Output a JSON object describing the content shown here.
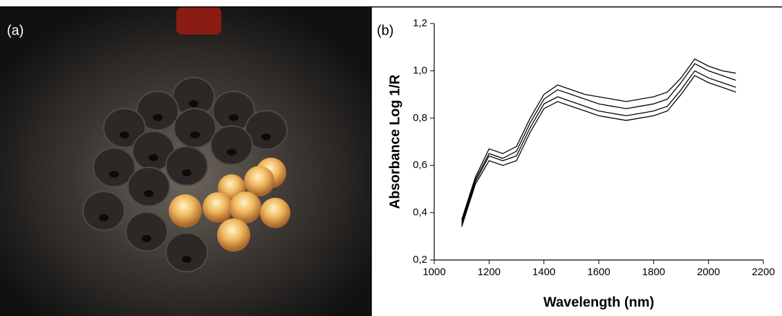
{
  "panel_a": {
    "label": "(a)"
  },
  "chart_data": {
    "type": "line",
    "panel_label": "(b)",
    "x_label": "Wavelength (nm)",
    "y_label": "Absorbance Log 1/R",
    "x": [
      1100,
      1150,
      1200,
      1250,
      1300,
      1350,
      1400,
      1450,
      1500,
      1550,
      1600,
      1650,
      1700,
      1750,
      1800,
      1850,
      1900,
      1950,
      2000,
      2050,
      2100
    ],
    "series": [
      {
        "color": "#000000",
        "values": [
          0.37,
          0.55,
          0.67,
          0.65,
          0.68,
          0.8,
          0.9,
          0.94,
          0.92,
          0.9,
          0.89,
          0.88,
          0.87,
          0.88,
          0.89,
          0.91,
          0.97,
          1.05,
          1.02,
          1.0,
          0.99
        ]
      },
      {
        "color": "#000000",
        "values": [
          0.36,
          0.54,
          0.65,
          0.63,
          0.66,
          0.78,
          0.88,
          0.92,
          0.9,
          0.88,
          0.86,
          0.85,
          0.84,
          0.85,
          0.86,
          0.88,
          0.95,
          1.03,
          1.0,
          0.98,
          0.96
        ]
      },
      {
        "color": "#000000",
        "values": [
          0.35,
          0.53,
          0.64,
          0.62,
          0.64,
          0.76,
          0.86,
          0.89,
          0.87,
          0.85,
          0.83,
          0.82,
          0.81,
          0.82,
          0.83,
          0.85,
          0.92,
          1.0,
          0.97,
          0.95,
          0.93
        ]
      },
      {
        "color": "#000000",
        "values": [
          0.34,
          0.52,
          0.62,
          0.6,
          0.62,
          0.74,
          0.84,
          0.87,
          0.85,
          0.83,
          0.81,
          0.8,
          0.79,
          0.8,
          0.81,
          0.83,
          0.9,
          0.98,
          0.95,
          0.93,
          0.91
        ]
      }
    ],
    "xlim": [
      1000,
      2200
    ],
    "xticks": [
      1000,
      1200,
      1400,
      1600,
      1800,
      2000,
      2200
    ],
    "ylim": [
      0.2,
      1.2
    ],
    "yticks": [
      {
        "value": 0.2,
        "label": "0,2"
      },
      {
        "value": 0.4,
        "label": "0,4"
      },
      {
        "value": 0.6,
        "label": "0,6"
      },
      {
        "value": 0.8,
        "label": "0,8"
      },
      {
        "value": 1.0,
        "label": "1,0"
      },
      {
        "value": 1.2,
        "label": "1,2"
      }
    ]
  }
}
